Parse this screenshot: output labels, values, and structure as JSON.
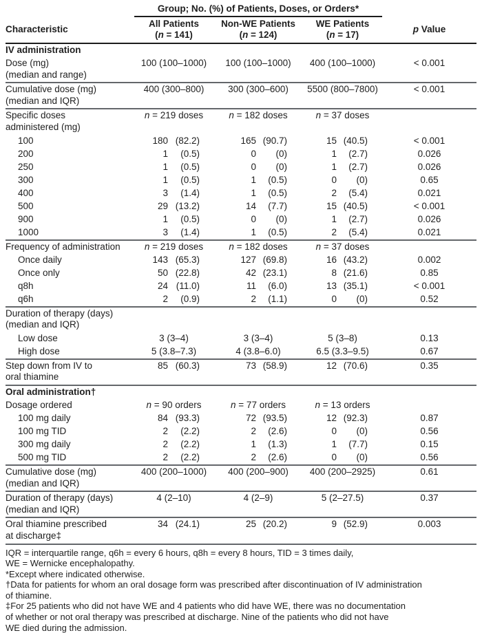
{
  "header": {
    "spanner": "Group; No. (%) of Patients, Doses, or Orders*",
    "characteristic": "Characteristic",
    "p_value_label": "p Value",
    "columns": [
      {
        "name": "All Patients",
        "n_label": "(n = 141)"
      },
      {
        "name": "Non-WE Patients",
        "n_label": "(n = 124)"
      },
      {
        "name": "WE Patients",
        "n_label": "(n = 17)"
      }
    ]
  },
  "rows": [
    {
      "type": "section",
      "label": "IV administration"
    },
    {
      "label": "Dose (mg)",
      "label2": "(median and range)",
      "format": "center",
      "values": [
        "100 (100–1000)",
        "100 (100–1000)",
        "400 (100–1000)"
      ],
      "p": "< 0.001",
      "rule_after": true
    },
    {
      "label": "Cumulative dose (mg)",
      "label2": "(median and IQR)",
      "format": "center",
      "values": [
        "400 (300–800)",
        "300 (300–600)",
        "5500 (800–7800)"
      ],
      "p": "< 0.001",
      "rule_after": true
    },
    {
      "label": "Specific doses",
      "label2": "administered (mg)",
      "format": "n",
      "values": [
        "n = 219 doses",
        "n = 182 doses",
        "n = 37 doses"
      ],
      "p": ""
    },
    {
      "label": "100",
      "indent": true,
      "format": "split",
      "values": [
        [
          "180",
          "(82.2)"
        ],
        [
          "165",
          "(90.7)"
        ],
        [
          "15",
          "(40.5)"
        ]
      ],
      "p": "< 0.001"
    },
    {
      "label": "200",
      "indent": true,
      "format": "split",
      "values": [
        [
          "1",
          "(0.5)"
        ],
        [
          "0",
          "(0)"
        ],
        [
          "1",
          "(2.7)"
        ]
      ],
      "p": "0.026"
    },
    {
      "label": "250",
      "indent": true,
      "format": "split",
      "values": [
        [
          "1",
          "(0.5)"
        ],
        [
          "0",
          "(0)"
        ],
        [
          "1",
          "(2.7)"
        ]
      ],
      "p": "0.026"
    },
    {
      "label": "300",
      "indent": true,
      "format": "split",
      "values": [
        [
          "1",
          "(0.5)"
        ],
        [
          "1",
          "(0.5)"
        ],
        [
          "0",
          "(0)"
        ]
      ],
      "p": "0.65"
    },
    {
      "label": "400",
      "indent": true,
      "format": "split",
      "values": [
        [
          "3",
          "(1.4)"
        ],
        [
          "1",
          "(0.5)"
        ],
        [
          "2",
          "(5.4)"
        ]
      ],
      "p": "0.021"
    },
    {
      "label": "500",
      "indent": true,
      "format": "split",
      "values": [
        [
          "29",
          "(13.2)"
        ],
        [
          "14",
          "(7.7)"
        ],
        [
          "15",
          "(40.5)"
        ]
      ],
      "p": "< 0.001"
    },
    {
      "label": "900",
      "indent": true,
      "format": "split",
      "values": [
        [
          "1",
          "(0.5)"
        ],
        [
          "0",
          "(0)"
        ],
        [
          "1",
          "(2.7)"
        ]
      ],
      "p": "0.026"
    },
    {
      "label": "1000",
      "indent": true,
      "format": "split",
      "values": [
        [
          "3",
          "(1.4)"
        ],
        [
          "1",
          "(0.5)"
        ],
        [
          "2",
          "(5.4)"
        ]
      ],
      "p": "0.021",
      "rule_after": true
    },
    {
      "label": "Frequency of administration",
      "format": "n",
      "values": [
        "n = 219 doses",
        "n = 182 doses",
        "n = 37 doses"
      ],
      "p": ""
    },
    {
      "label": "Once daily",
      "indent": true,
      "format": "split",
      "values": [
        [
          "143",
          "(65.3)"
        ],
        [
          "127",
          "(69.8)"
        ],
        [
          "16",
          "(43.2)"
        ]
      ],
      "p": "0.002"
    },
    {
      "label": "Once only",
      "indent": true,
      "format": "split",
      "values": [
        [
          "50",
          "(22.8)"
        ],
        [
          "42",
          "(23.1)"
        ],
        [
          "8",
          "(21.6)"
        ]
      ],
      "p": "0.85"
    },
    {
      "label": "q8h",
      "indent": true,
      "format": "split",
      "values": [
        [
          "24",
          "(11.0)"
        ],
        [
          "11",
          "(6.0)"
        ],
        [
          "13",
          "(35.1)"
        ]
      ],
      "p": "< 0.001"
    },
    {
      "label": "q6h",
      "indent": true,
      "format": "split",
      "values": [
        [
          "2",
          "(0.9)"
        ],
        [
          "2",
          "(1.1)"
        ],
        [
          "0",
          "(0)"
        ]
      ],
      "p": "0.52",
      "rule_after": true
    },
    {
      "label": "Duration of therapy (days)",
      "label2": "(median and IQR)",
      "format": "none",
      "values": [],
      "p": ""
    },
    {
      "label": "Low dose",
      "indent": true,
      "format": "center",
      "values": [
        "3 (3–4)",
        "3 (3–4)",
        "5 (3–8)"
      ],
      "p": "0.13"
    },
    {
      "label": "High dose",
      "indent": true,
      "format": "center",
      "values": [
        "5 (3.8–7.3)",
        "4 (3.8–6.0)",
        "6.5 (3.3–9.5)"
      ],
      "p": "0.67",
      "rule_after": true
    },
    {
      "label": "Step down from IV to",
      "label2": "oral thiamine",
      "format": "split",
      "values": [
        [
          "85",
          "(60.3)"
        ],
        [
          "73",
          "(58.9)"
        ],
        [
          "12",
          "(70.6)"
        ]
      ],
      "p": "0.35",
      "rule_after": true
    },
    {
      "type": "section",
      "label": "Oral administration†"
    },
    {
      "label": "Dosage ordered",
      "format": "n",
      "values": [
        "n = 90 orders",
        "n = 77 orders",
        "n = 13 orders"
      ],
      "p": ""
    },
    {
      "label": "100 mg daily",
      "indent": true,
      "format": "split",
      "values": [
        [
          "84",
          "(93.3)"
        ],
        [
          "72",
          "(93.5)"
        ],
        [
          "12",
          "(92.3)"
        ]
      ],
      "p": "0.87"
    },
    {
      "label": "100 mg TID",
      "indent": true,
      "format": "split",
      "values": [
        [
          "2",
          "(2.2)"
        ],
        [
          "2",
          "(2.6)"
        ],
        [
          "0",
          "(0)"
        ]
      ],
      "p": "0.56"
    },
    {
      "label": "300 mg daily",
      "indent": true,
      "format": "split",
      "values": [
        [
          "2",
          "(2.2)"
        ],
        [
          "1",
          "(1.3)"
        ],
        [
          "1",
          "(7.7)"
        ]
      ],
      "p": "0.15"
    },
    {
      "label": "500 mg TID",
      "indent": true,
      "format": "split",
      "values": [
        [
          "2",
          "(2.2)"
        ],
        [
          "2",
          "(2.6)"
        ],
        [
          "0",
          "(0)"
        ]
      ],
      "p": "0.56",
      "rule_after": true
    },
    {
      "label": "Cumulative dose (mg)",
      "label2": "(median and IQR)",
      "format": "center",
      "values": [
        "400 (200–1000)",
        "400 (200–900)",
        "400 (200–2925)"
      ],
      "p": "0.61",
      "rule_after": true
    },
    {
      "label": "Duration of therapy (days)",
      "label2": "(median and IQR)",
      "format": "center",
      "values": [
        "4 (2–10)",
        "4 (2–9)",
        "5 (2–27.5)"
      ],
      "p": "0.37",
      "rule_after": true
    },
    {
      "label": "Oral thiamine prescribed",
      "label2": "at discharge‡",
      "format": "split",
      "values": [
        [
          "34",
          "(24.1)"
        ],
        [
          "25",
          "(20.2)"
        ],
        [
          "9",
          "(52.9)"
        ]
      ],
      "p": "0.003",
      "rule_after": true
    }
  ],
  "footnotes": [
    {
      "id": "abbreviations",
      "lines": [
        "IQR = interquartile range, q6h = every 6 hours, q8h = every 8 hours, TID = 3 times daily,",
        "WE = Wernicke encephalopathy."
      ]
    },
    {
      "id": "asterisk",
      "lines": [
        "*Except where indicated otherwise."
      ]
    },
    {
      "id": "dagger",
      "lines": [
        "†Data for patients for whom an oral dosage form was prescribed after discontinuation of IV administration",
        "of thiamine."
      ]
    },
    {
      "id": "double-dagger",
      "lines": [
        "‡For 25 patients who did not have WE and 4 patients who did have WE, there was no documentation",
        "of whether or not oral therapy was prescribed at discharge. Nine of the patients who did not have",
        "WE died during the admission."
      ]
    }
  ]
}
